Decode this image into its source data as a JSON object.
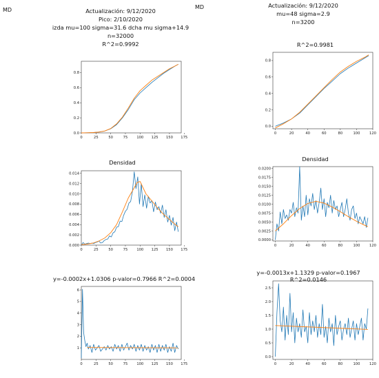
{
  "corner_label": "MD",
  "left": {
    "header": [
      "Actualización: 9/12/2020",
      "Pico: 2/10/2020",
      "izda mu=100 sigma=31.6 dcha mu sigma+14.9",
      "n=32000",
      "R^2=0.9992"
    ]
  },
  "right": {
    "header": [
      "Actualización: 9/12/2020",
      "mu=48 sigma=2.9",
      "n=3200"
    ]
  },
  "colors": {
    "data": "#1f77b4",
    "fit": "#ff7f0e",
    "axis": "#333333"
  },
  "chart_data": [
    {
      "id": "left-cumulative",
      "type": "line",
      "title": "",
      "xlim": [
        0,
        170
      ],
      "ylim": [
        0,
        0.95
      ],
      "xticks": [
        0,
        25,
        50,
        75,
        100,
        125,
        150,
        175
      ],
      "yticks": [
        0.0,
        0.2,
        0.4,
        0.6,
        0.8
      ],
      "xticklabels": [
        "0",
        "25",
        "50",
        "75",
        "100",
        "125",
        "150",
        "175"
      ],
      "yticklabels": [
        "0.0",
        "0.2",
        "0.4",
        "0.6",
        "0.8"
      ],
      "series": [
        {
          "role": "data",
          "x": [
            0,
            10,
            20,
            30,
            40,
            50,
            60,
            70,
            80,
            90,
            100,
            110,
            120,
            130,
            140,
            150,
            160,
            165
          ],
          "y": [
            0.0,
            0.002,
            0.005,
            0.012,
            0.025,
            0.055,
            0.11,
            0.2,
            0.31,
            0.44,
            0.53,
            0.6,
            0.67,
            0.73,
            0.79,
            0.84,
            0.89,
            0.91
          ]
        },
        {
          "role": "fit",
          "x": [
            0,
            10,
            20,
            30,
            40,
            50,
            60,
            70,
            80,
            90,
            100,
            110,
            120,
            130,
            140,
            150,
            160,
            165
          ],
          "y": [
            0.0,
            0.002,
            0.005,
            0.011,
            0.026,
            0.058,
            0.12,
            0.21,
            0.33,
            0.46,
            0.56,
            0.63,
            0.7,
            0.75,
            0.8,
            0.85,
            0.89,
            0.91
          ]
        }
      ]
    },
    {
      "id": "left-density",
      "type": "line",
      "title": "Densidad",
      "xlim": [
        0,
        170
      ],
      "ylim": [
        0,
        0.0145
      ],
      "xticks": [
        0,
        25,
        50,
        75,
        100,
        125,
        150,
        175
      ],
      "yticks": [
        0.0,
        0.002,
        0.004,
        0.006,
        0.008,
        0.01,
        0.012,
        0.014
      ],
      "xticklabels": [
        "0",
        "25",
        "50",
        "75",
        "100",
        "125",
        "150",
        "175"
      ],
      "yticklabels": [
        "0.000",
        "0.002",
        "0.004",
        "0.006",
        "0.008",
        "0.010",
        "0.012",
        "0.014"
      ],
      "series": [
        {
          "role": "data",
          "x": [
            0,
            3,
            6,
            9,
            12,
            15,
            18,
            21,
            24,
            27,
            30,
            33,
            36,
            39,
            42,
            45,
            48,
            51,
            54,
            57,
            60,
            63,
            66,
            69,
            72,
            75,
            78,
            81,
            84,
            87,
            90,
            93,
            96,
            99,
            102,
            105,
            108,
            111,
            114,
            117,
            120,
            123,
            126,
            129,
            132,
            135,
            138,
            141,
            144,
            147,
            150,
            153,
            156,
            159,
            162,
            165
          ],
          "y": [
            0.0,
            0.0005,
            0.0002,
            0.0003,
            0.0004,
            0.0003,
            0.0004,
            0.0003,
            0.0005,
            0.0006,
            0.0008,
            0.0004,
            0.0005,
            0.0009,
            0.0011,
            0.0012,
            0.0018,
            0.0016,
            0.0024,
            0.0026,
            0.0035,
            0.0036,
            0.0047,
            0.0046,
            0.0058,
            0.0066,
            0.007,
            0.0082,
            0.0085,
            0.0105,
            0.0143,
            0.011,
            0.0133,
            0.008,
            0.012,
            0.0075,
            0.0098,
            0.0072,
            0.0095,
            0.0082,
            0.0087,
            0.0065,
            0.0084,
            0.0069,
            0.0075,
            0.0062,
            0.0078,
            0.0054,
            0.0069,
            0.0045,
            0.0058,
            0.0039,
            0.0054,
            0.0028,
            0.0045,
            0.0026
          ]
        },
        {
          "role": "fit",
          "x": [
            0,
            10,
            20,
            30,
            40,
            50,
            60,
            70,
            80,
            90,
            95,
            100,
            110,
            120,
            130,
            140,
            150,
            160,
            165
          ],
          "y": [
            0.0001,
            0.0002,
            0.0004,
            0.0008,
            0.0014,
            0.0024,
            0.004,
            0.0065,
            0.0092,
            0.0112,
            0.0122,
            0.0124,
            0.01,
            0.0086,
            0.0072,
            0.006,
            0.005,
            0.004,
            0.0036
          ]
        }
      ]
    },
    {
      "id": "left-ratio",
      "type": "line",
      "title": "y=-0.0002x+1.0306  p-valor=0.7966  R^2=0.0004",
      "xlim": [
        0,
        170
      ],
      "ylim": [
        0,
        6.3
      ],
      "xticks": [
        0,
        25,
        50,
        75,
        100,
        125,
        150,
        175
      ],
      "yticks": [
        1,
        2,
        3,
        4,
        5,
        6
      ],
      "xticklabels": [
        "0",
        "25",
        "50",
        "75",
        "100",
        "125",
        "150",
        "175"
      ],
      "yticklabels": [
        "1",
        "2",
        "3",
        "4",
        "5",
        "6"
      ],
      "series": [
        {
          "role": "data",
          "x": [
            0,
            2,
            4,
            6,
            8,
            10,
            12,
            15,
            18,
            21,
            24,
            27,
            30,
            33,
            36,
            39,
            42,
            45,
            48,
            51,
            54,
            57,
            60,
            63,
            66,
            69,
            72,
            75,
            78,
            81,
            84,
            87,
            90,
            93,
            96,
            99,
            102,
            105,
            108,
            111,
            114,
            117,
            120,
            123,
            126,
            129,
            132,
            135,
            138,
            141,
            144,
            147,
            150,
            153,
            156,
            159,
            162,
            165
          ],
          "y": [
            0.1,
            6.05,
            2.3,
            1.6,
            1.1,
            1.4,
            0.9,
            1.2,
            0.6,
            1.3,
            0.8,
            1.0,
            1.2,
            0.7,
            0.9,
            1.1,
            0.8,
            1.2,
            0.9,
            1.1,
            0.7,
            1.3,
            0.9,
            1.2,
            0.7,
            1.3,
            0.8,
            1.1,
            1.4,
            0.8,
            1.2,
            0.9,
            1.3,
            0.7,
            1.2,
            0.8,
            1.3,
            0.7,
            1.2,
            0.8,
            1.1,
            0.6,
            1.3,
            0.8,
            1.2,
            0.6,
            1.3,
            0.7,
            1.2,
            0.8,
            1.3,
            0.6,
            1.1,
            0.7,
            1.4,
            0.6,
            1.2,
            0.9
          ]
        },
        {
          "role": "fit",
          "x": [
            10,
            165
          ],
          "y": [
            1.03,
            1.0
          ]
        }
      ]
    },
    {
      "id": "right-cumulative",
      "type": "line",
      "title": "R^2=0.9981",
      "xlim": [
        -3,
        120
      ],
      "ylim": [
        -0.03,
        0.9
      ],
      "xticks": [
        0,
        20,
        40,
        60,
        80,
        100,
        120
      ],
      "yticks": [
        0.0,
        0.2,
        0.4,
        0.6,
        0.8
      ],
      "xticklabels": [
        "0",
        "20",
        "40",
        "60",
        "80",
        "100",
        "120"
      ],
      "yticklabels": [
        "0.0",
        "0.2",
        "0.4",
        "0.6",
        "0.8"
      ],
      "series": [
        {
          "role": "data",
          "x": [
            0,
            10,
            20,
            30,
            40,
            50,
            60,
            70,
            80,
            90,
            100,
            110,
            115
          ],
          "y": [
            0.0,
            0.04,
            0.09,
            0.16,
            0.26,
            0.36,
            0.46,
            0.55,
            0.64,
            0.71,
            0.77,
            0.83,
            0.86
          ]
        },
        {
          "role": "fit",
          "x": [
            0,
            10,
            20,
            30,
            40,
            50,
            60,
            70,
            80,
            90,
            100,
            110,
            115
          ],
          "y": [
            -0.02,
            0.03,
            0.09,
            0.17,
            0.27,
            0.37,
            0.47,
            0.57,
            0.66,
            0.73,
            0.79,
            0.84,
            0.87
          ]
        }
      ]
    },
    {
      "id": "right-density",
      "type": "line",
      "title": "Densidad",
      "xlim": [
        -3,
        120
      ],
      "ylim": [
        -0.0003,
        0.0205
      ],
      "xticks": [
        0,
        20,
        40,
        60,
        80,
        100,
        120
      ],
      "yticks": [
        0.0,
        0.0025,
        0.005,
        0.0075,
        0.01,
        0.0125,
        0.015,
        0.0175,
        0.02
      ],
      "xticklabels": [
        "0",
        "20",
        "40",
        "60",
        "80",
        "100",
        "120"
      ],
      "yticklabels": [
        "0.0000",
        "0.0025",
        "0.0050",
        "0.0075",
        "0.0100",
        "0.0125",
        "0.0150",
        "0.0175",
        "0.0200"
      ],
      "series": [
        {
          "role": "data",
          "x": [
            0,
            2,
            4,
            6,
            8,
            10,
            12,
            14,
            16,
            18,
            20,
            22,
            24,
            26,
            28,
            30,
            32,
            34,
            36,
            38,
            40,
            42,
            44,
            46,
            48,
            50,
            52,
            54,
            56,
            58,
            60,
            62,
            64,
            66,
            68,
            70,
            72,
            74,
            76,
            78,
            80,
            82,
            84,
            86,
            88,
            90,
            92,
            94,
            96,
            98,
            100,
            102,
            104,
            106,
            108,
            110,
            112,
            114
          ],
          "y": [
            0.0,
            0.0045,
            0.0025,
            0.0078,
            0.0045,
            0.0085,
            0.006,
            0.007,
            0.0055,
            0.0085,
            0.0075,
            0.0105,
            0.0065,
            0.009,
            0.0075,
            0.0205,
            0.0055,
            0.0095,
            0.0065,
            0.0125,
            0.007,
            0.0115,
            0.0095,
            0.013,
            0.0085,
            0.011,
            0.0075,
            0.0105,
            0.0145,
            0.0085,
            0.0115,
            0.0065,
            0.0105,
            0.009,
            0.0125,
            0.0075,
            0.011,
            0.0085,
            0.0095,
            0.0065,
            0.0085,
            0.0105,
            0.0065,
            0.0085,
            0.0115,
            0.0075,
            0.0055,
            0.0085,
            0.0095,
            0.006,
            0.0075,
            0.0045,
            0.0065,
            0.0055,
            0.0045,
            0.0065,
            0.0035,
            0.0062
          ]
        },
        {
          "role": "fit",
          "x": [
            0,
            10,
            20,
            30,
            40,
            50,
            60,
            70,
            80,
            90,
            100,
            110,
            114
          ],
          "y": [
            0.0025,
            0.0045,
            0.0068,
            0.0088,
            0.0102,
            0.0108,
            0.0103,
            0.0092,
            0.0079,
            0.0065,
            0.0052,
            0.0041,
            0.0037
          ]
        }
      ]
    },
    {
      "id": "right-ratio",
      "type": "line",
      "title": "y=-0.0013x+1.1329  p-valor=0.1967  R^2=0.0146",
      "xlim": [
        -3,
        120
      ],
      "ylim": [
        -0.1,
        2.75
      ],
      "xticks": [
        0,
        20,
        40,
        60,
        80,
        100,
        120
      ],
      "yticks": [
        0.0,
        0.5,
        1.0,
        1.5,
        2.0,
        2.5
      ],
      "xticklabels": [
        "0",
        "20",
        "40",
        "60",
        "80",
        "100",
        "120"
      ],
      "yticklabels": [
        "0.0",
        "0.5",
        "1.0",
        "1.5",
        "2.0",
        "2.5"
      ],
      "series": [
        {
          "role": "data",
          "x": [
            0,
            2,
            4,
            6,
            8,
            10,
            12,
            14,
            16,
            18,
            20,
            22,
            24,
            26,
            28,
            30,
            32,
            34,
            36,
            38,
            40,
            42,
            44,
            46,
            48,
            50,
            52,
            54,
            56,
            58,
            60,
            62,
            64,
            66,
            68,
            70,
            72,
            74,
            76,
            78,
            80,
            82,
            84,
            86,
            88,
            90,
            92,
            94,
            96,
            98,
            100,
            102,
            104,
            106,
            108,
            110,
            112,
            114
          ],
          "y": [
            0.0,
            1.6,
            2.65,
            1.3,
            0.9,
            1.8,
            0.6,
            1.5,
            0.8,
            2.3,
            0.9,
            1.6,
            0.5,
            1.4,
            0.9,
            1.2,
            0.7,
            1.7,
            0.9,
            1.1,
            0.5,
            1.6,
            0.8,
            1.3,
            0.9,
            1.5,
            0.7,
            1.2,
            0.8,
            1.9,
            0.7,
            1.1,
            0.5,
            1.4,
            0.9,
            1.2,
            0.4,
            1.5,
            0.8,
            1.1,
            1.3,
            0.6,
            1.0,
            1.2,
            0.8,
            1.4,
            0.7,
            1.0,
            1.3,
            0.6,
            1.2,
            0.8,
            1.1,
            1.4,
            0.6,
            1.2,
            1.0,
            1.75
          ]
        },
        {
          "role": "fit",
          "x": [
            0,
            114
          ],
          "y": [
            1.13,
            0.99
          ]
        }
      ]
    }
  ]
}
